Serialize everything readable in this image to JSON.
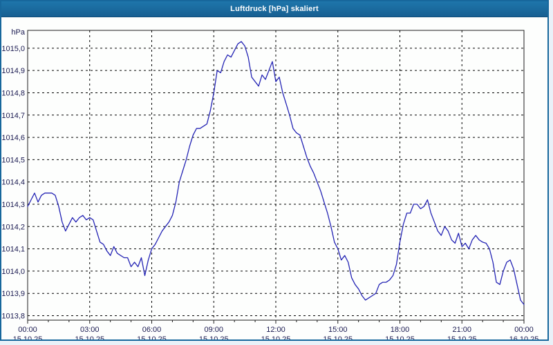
{
  "window": {
    "title": "Luftdruck [hPa] skaliert"
  },
  "colors": {
    "title_bar_top": "#1e76ab",
    "title_bar_bottom": "#175f92",
    "window_border": "#17679c",
    "plot_background": "#fdfefd",
    "page_background": "#e9f1f8",
    "line": "#2323b4",
    "grid": "#000000",
    "axis": "#1a1a1a",
    "label_text": "#191950",
    "title_text": "#ffffff"
  },
  "chart_data": {
    "type": "line",
    "title": "Luftdruck [hPa] skaliert",
    "ylabel": "hPa",
    "xlabel": "",
    "grid": true,
    "legend": "none",
    "ylim": [
      1013.78,
      1015.08
    ],
    "xlim_minutes": [
      0,
      1440
    ],
    "minor_tick_minutes": 60,
    "y_ticks": [
      {
        "value": 1015.0,
        "label": "1015,0"
      },
      {
        "value": 1014.9,
        "label": "1014,9"
      },
      {
        "value": 1014.8,
        "label": "1014,8"
      },
      {
        "value": 1014.7,
        "label": "1014,7"
      },
      {
        "value": 1014.6,
        "label": "1014,6"
      },
      {
        "value": 1014.5,
        "label": "1014,5"
      },
      {
        "value": 1014.4,
        "label": "1014,4"
      },
      {
        "value": 1014.3,
        "label": "1014,3"
      },
      {
        "value": 1014.2,
        "label": "1014,2"
      },
      {
        "value": 1014.1,
        "label": "1014,1"
      },
      {
        "value": 1014.0,
        "label": "1014,0"
      },
      {
        "value": 1013.9,
        "label": "1013,9"
      },
      {
        "value": 1013.8,
        "label": "1013,8"
      }
    ],
    "x_ticks": [
      {
        "minutes": 0,
        "time": "00:00",
        "date": "15.10.25"
      },
      {
        "minutes": 180,
        "time": "03:00",
        "date": "15.10.25"
      },
      {
        "minutes": 360,
        "time": "06:00",
        "date": "15.10.25"
      },
      {
        "minutes": 540,
        "time": "09:00",
        "date": "15.10.25"
      },
      {
        "minutes": 720,
        "time": "12:00",
        "date": "15.10.25"
      },
      {
        "minutes": 900,
        "time": "15:00",
        "date": "15.10.25"
      },
      {
        "minutes": 1080,
        "time": "18:00",
        "date": "15.10.25"
      },
      {
        "minutes": 1260,
        "time": "21:00",
        "date": "15.10.25"
      },
      {
        "minutes": 1440,
        "time": "00:00",
        "date": "16.10.25"
      }
    ],
    "series": [
      {
        "name": "Luftdruck",
        "unit": "hPa",
        "start_minutes": 0,
        "step_minutes": 10,
        "values": [
          1014.29,
          1014.32,
          1014.35,
          1014.31,
          1014.34,
          1014.35,
          1014.35,
          1014.35,
          1014.34,
          1014.29,
          1014.22,
          1014.18,
          1014.21,
          1014.24,
          1014.22,
          1014.24,
          1014.25,
          1014.23,
          1014.24,
          1014.23,
          1014.18,
          1014.13,
          1014.12,
          1014.09,
          1014.07,
          1014.11,
          1014.08,
          1014.07,
          1014.06,
          1014.06,
          1014.02,
          1014.04,
          1014.02,
          1014.06,
          1013.98,
          1014.05,
          1014.1,
          1014.12,
          1014.15,
          1014.18,
          1014.2,
          1014.22,
          1014.25,
          1014.31,
          1014.4,
          1014.45,
          1014.5,
          1014.56,
          1014.61,
          1014.64,
          1014.64,
          1014.65,
          1014.66,
          1014.72,
          1014.8,
          1014.9,
          1014.89,
          1014.94,
          1014.97,
          1014.96,
          1014.99,
          1015.02,
          1015.03,
          1015.01,
          1014.96,
          1014.87,
          1014.85,
          1014.83,
          1014.88,
          1014.86,
          1014.9,
          1014.94,
          1014.85,
          1014.87,
          1014.8,
          1014.75,
          1014.7,
          1014.64,
          1014.62,
          1014.61,
          1014.56,
          1014.51,
          1014.47,
          1014.44,
          1014.4,
          1014.36,
          1014.31,
          1014.26,
          1014.2,
          1014.13,
          1014.1,
          1014.05,
          1014.07,
          1014.04,
          1013.97,
          1013.94,
          1013.92,
          1013.89,
          1013.87,
          1013.88,
          1013.89,
          1013.9,
          1013.94,
          1013.95,
          1013.95,
          1013.96,
          1013.98,
          1014.03,
          1014.13,
          1014.21,
          1014.26,
          1014.26,
          1014.3,
          1014.3,
          1014.28,
          1014.29,
          1014.32,
          1014.26,
          1014.22,
          1014.18,
          1014.16,
          1014.2,
          1014.18,
          1014.14,
          1014.125,
          1014.17,
          1014.11,
          1014.125,
          1014.1,
          1014.14,
          1014.16,
          1014.14,
          1014.13,
          1014.125,
          1014.1,
          1014.04,
          1013.95,
          1013.94,
          1014.0,
          1014.04,
          1014.05,
          1014.01,
          1013.94,
          1013.87,
          1013.85
        ]
      }
    ]
  }
}
